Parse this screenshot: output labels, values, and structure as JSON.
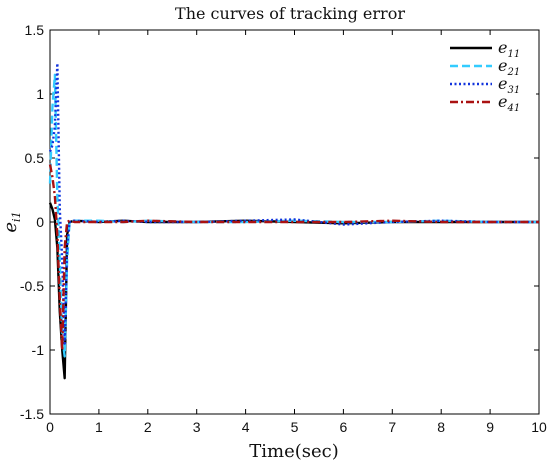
{
  "chart_data": {
    "type": "line",
    "title": "The curves of tracking error",
    "xlabel": "Time(sec)",
    "ylabel": "e_{i1}",
    "ylabel_main": "e",
    "ylabel_sub": "i1",
    "xlim": [
      0,
      10
    ],
    "ylim": [
      -1.5,
      1.5
    ],
    "xticks": [
      0,
      1,
      2,
      3,
      4,
      5,
      6,
      7,
      8,
      9,
      10
    ],
    "yticks": [
      -1.5,
      -1,
      -0.5,
      0,
      0.5,
      1,
      1.5
    ],
    "xtick_labels": [
      "0",
      "1",
      "2",
      "3",
      "4",
      "5",
      "6",
      "7",
      "8",
      "9",
      "10"
    ],
    "ytick_labels": [
      "-1.5",
      "-1",
      "-0.5",
      "0",
      "0.5",
      "1",
      "1.5"
    ],
    "legend_position": "top-right",
    "grid": false,
    "series": [
      {
        "name": "e11",
        "legend_main": "e",
        "legend_sub": "11",
        "color": "#000000",
        "style": "solid",
        "x": [
          0,
          0.05,
          0.1,
          0.15,
          0.2,
          0.25,
          0.3,
          0.35,
          0.4,
          0.5,
          1,
          1.5,
          2,
          3,
          4,
          5,
          6,
          7,
          8,
          9,
          10
        ],
        "y": [
          0.15,
          0.1,
          0.02,
          -0.2,
          -0.7,
          -1.0,
          -1.22,
          -0.1,
          0.0,
          0.01,
          0.0,
          0.01,
          0.0,
          0.0,
          0.01,
          0.0,
          -0.01,
          0.0,
          0.0,
          0.0,
          0.0
        ]
      },
      {
        "name": "e21",
        "legend_main": "e",
        "legend_sub": "21",
        "color": "#33ccff",
        "style": "dashed",
        "x": [
          0,
          0.05,
          0.1,
          0.15,
          0.2,
          0.25,
          0.3,
          0.35,
          0.4,
          0.5,
          1,
          1.5,
          2,
          3,
          4,
          5,
          6,
          7,
          8,
          9,
          10
        ],
        "y": [
          0.3,
          0.9,
          1.15,
          0.2,
          -0.3,
          -0.9,
          -1.05,
          -0.3,
          0.0,
          0.01,
          0.01,
          0.0,
          0.01,
          0.0,
          0.0,
          0.01,
          0.0,
          0.0,
          0.01,
          0.0,
          0.0
        ]
      },
      {
        "name": "e31",
        "legend_main": "e",
        "legend_sub": "31",
        "color": "#1133dd",
        "style": "dotted",
        "x": [
          0,
          0.05,
          0.1,
          0.15,
          0.2,
          0.25,
          0.3,
          0.35,
          0.4,
          0.5,
          1,
          1.5,
          2,
          3,
          4,
          5,
          6,
          7,
          8,
          9,
          10
        ],
        "y": [
          0.55,
          0.6,
          0.75,
          1.24,
          0.1,
          -0.3,
          -0.95,
          -0.2,
          0.0,
          0.01,
          0.0,
          0.01,
          0.0,
          0.0,
          0.01,
          0.02,
          -0.02,
          0.0,
          0.01,
          0.0,
          0.0
        ]
      },
      {
        "name": "e41",
        "legend_main": "e",
        "legend_sub": "41",
        "color": "#aa1111",
        "style": "dashdot",
        "x": [
          0,
          0.05,
          0.1,
          0.15,
          0.2,
          0.25,
          0.3,
          0.35,
          0.4,
          0.5,
          1,
          1.5,
          2,
          3,
          4,
          5,
          6,
          7,
          8,
          9,
          10
        ],
        "y": [
          0.45,
          0.35,
          0.2,
          -0.1,
          -0.6,
          -1.0,
          -0.2,
          0.0,
          0.01,
          0.0,
          0.0,
          0.0,
          0.01,
          0.0,
          0.0,
          0.0,
          0.0,
          0.01,
          0.0,
          0.0,
          0.0
        ]
      }
    ]
  }
}
